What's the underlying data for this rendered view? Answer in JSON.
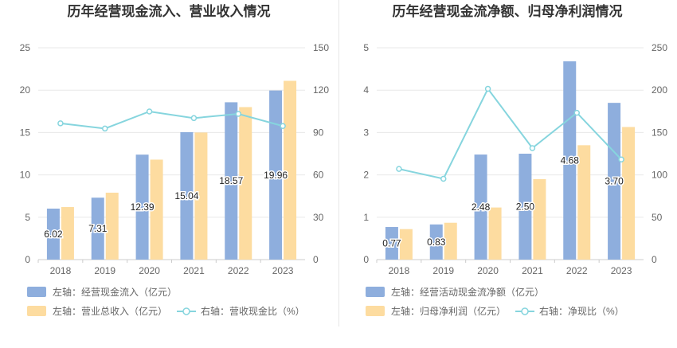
{
  "chart_data": [
    {
      "type": "bar",
      "title": "历年经营现金流入、营业收入情况",
      "categories": [
        "2018",
        "2019",
        "2020",
        "2021",
        "2022",
        "2023"
      ],
      "y_left": {
        "min": 0,
        "max": 25,
        "ticks": [
          "0",
          "5",
          "10",
          "15",
          "20",
          "25"
        ]
      },
      "y_right": {
        "min": 0,
        "max": 150,
        "ticks": [
          "0",
          "30",
          "60",
          "90",
          "120",
          "150"
        ]
      },
      "series": [
        {
          "name": "左轴：经营现金流入（亿元）",
          "type": "bar",
          "axis": "left",
          "color": "#8eaedd",
          "values": [
            6.02,
            7.31,
            12.39,
            15.04,
            18.57,
            19.96
          ],
          "labels": [
            "6.02",
            "7.31",
            "12.39",
            "15.04",
            "18.57",
            "19.96"
          ]
        },
        {
          "name": "左轴：营业总收入（亿元）",
          "type": "bar",
          "axis": "left",
          "color": "#fddca0",
          "values": [
            6.2,
            7.9,
            11.8,
            15.0,
            18.0,
            21.1
          ]
        },
        {
          "name": "右轴：营收现金比（%）",
          "type": "line",
          "axis": "right",
          "color": "#86d5de",
          "values": [
            96.5,
            92.8,
            104.9,
            100.2,
            103.2,
            94.6
          ]
        }
      ],
      "grid": true
    },
    {
      "type": "bar",
      "title": "历年经营现金流净额、归母净利润情况",
      "categories": [
        "2018",
        "2019",
        "2020",
        "2021",
        "2022",
        "2023"
      ],
      "y_left": {
        "min": 0,
        "max": 5,
        "ticks": [
          "0",
          "1",
          "2",
          "3",
          "4",
          "5"
        ]
      },
      "y_right": {
        "min": 0,
        "max": 250,
        "ticks": [
          "0",
          "50",
          "100",
          "150",
          "200",
          "250"
        ]
      },
      "series": [
        {
          "name": "左轴：经营活动现金流净额（亿元）",
          "type": "bar",
          "axis": "left",
          "color": "#8eaedd",
          "values": [
            0.77,
            0.83,
            2.48,
            2.5,
            4.68,
            3.7
          ],
          "labels": [
            "0.77",
            "0.83",
            "2.48",
            "2.50",
            "4.68",
            "3.70"
          ]
        },
        {
          "name": "左轴：归母净利润（亿元）",
          "type": "bar",
          "axis": "left",
          "color": "#fddca0",
          "values": [
            0.72,
            0.87,
            1.23,
            1.9,
            2.7,
            3.13
          ]
        },
        {
          "name": "右轴：净现比（%）",
          "type": "line",
          "axis": "right",
          "color": "#86d5de",
          "values": [
            107,
            95.4,
            201.6,
            131.6,
            173.3,
            118.2
          ]
        }
      ],
      "grid": true
    }
  ]
}
